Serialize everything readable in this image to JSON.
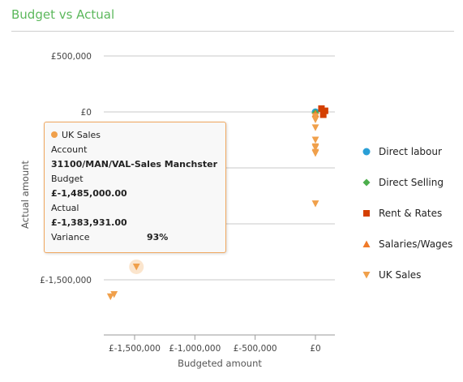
{
  "title": "Budget vs Actual",
  "colors": {
    "title": "#5cb85c",
    "direct_labour": "#2a9fd6",
    "direct_selling": "#4cae4c",
    "rent_rates": "#d43f00",
    "salaries_wages": "#f07a28",
    "uk_sales": "#f0a04b"
  },
  "chart_data": {
    "type": "scatter",
    "xlabel": "Budgeted amount",
    "ylabel": "Actual amount",
    "xlim": [
      -1750000,
      100000
    ],
    "ylim": [
      -2000000,
      500000
    ],
    "x_ticks": [
      -1500000,
      -1000000,
      -500000,
      0
    ],
    "x_tick_labels": [
      "£-1,500,000",
      "£-1,000,000",
      "£-500,000",
      "£0"
    ],
    "y_ticks": [
      500000,
      0,
      -500000,
      -1000000,
      -1500000
    ],
    "y_tick_labels": [
      "£500,000",
      "£0",
      "",
      "",
      "£-1,500,000"
    ],
    "legend_position": "right",
    "series": [
      {
        "name": "Direct labour",
        "marker": "circle",
        "color": "#2a9fd6",
        "points": [
          [
            0,
            0
          ]
        ]
      },
      {
        "name": "Direct Selling",
        "marker": "diamond",
        "color": "#4cae4c",
        "points": [
          [
            0,
            -10000
          ]
        ]
      },
      {
        "name": "Rent & Rates",
        "marker": "square",
        "color": "#d43f00",
        "points": [
          [
            50000,
            30000
          ],
          [
            65000,
            -25000
          ],
          [
            80000,
            10000
          ]
        ]
      },
      {
        "name": "Salaries/Wages",
        "marker": "triangle-up",
        "color": "#f07a28",
        "points": [
          [
            0,
            -15000
          ]
        ]
      },
      {
        "name": "UK Sales",
        "marker": "triangle-down",
        "color": "#f0a04b",
        "points": [
          [
            0,
            -40000
          ],
          [
            0,
            -70000
          ],
          [
            0,
            -140000
          ],
          [
            0,
            -250000
          ],
          [
            0,
            -310000
          ],
          [
            0,
            -320000
          ],
          [
            0,
            -370000
          ],
          [
            0,
            -360000
          ],
          [
            0,
            -820000
          ],
          [
            -1485000,
            -1383931
          ],
          [
            -1700000,
            -1650000
          ],
          [
            -1670000,
            -1630000
          ]
        ]
      }
    ],
    "highlighted_point": {
      "series": "UK Sales",
      "x": -1485000,
      "y": -1383931
    }
  },
  "legend": [
    {
      "label": "Direct labour",
      "marker": "circle",
      "color": "#2a9fd6"
    },
    {
      "label": "Direct Selling",
      "marker": "diamond",
      "color": "#4cae4c"
    },
    {
      "label": "Rent & Rates",
      "marker": "square",
      "color": "#d43f00"
    },
    {
      "label": "Salaries/Wages",
      "marker": "triangle-up",
      "color": "#f07a28"
    },
    {
      "label": "UK Sales",
      "marker": "triangle-down",
      "color": "#f0a04b"
    }
  ],
  "tooltip": {
    "series": "UK Sales",
    "account_label": "Account",
    "account_value": "31100/MAN/VAL-Sales Manchster",
    "budget_label": "Budget",
    "budget_value": "£-1,485,000.00",
    "actual_label": "Actual",
    "actual_value": "£-1,383,931.00",
    "variance_label": "Variance",
    "variance_value": "93%"
  }
}
